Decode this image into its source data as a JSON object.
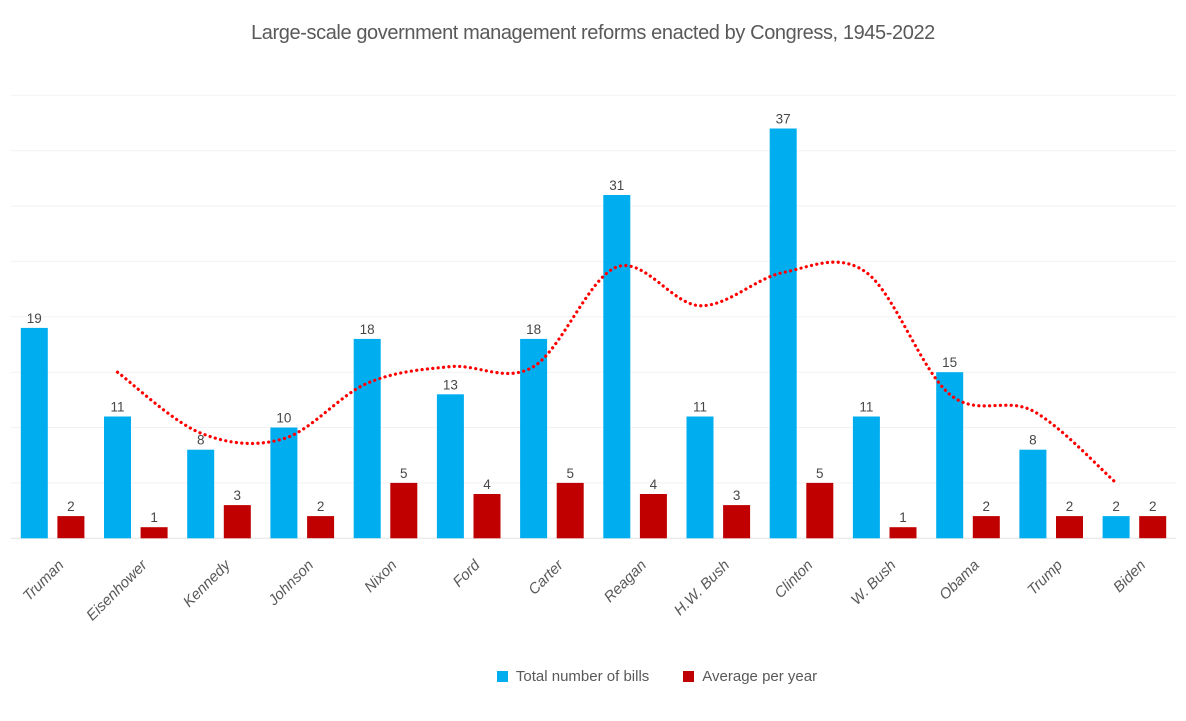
{
  "colors": {
    "bills": "#00AEEF",
    "average": "#C00000",
    "trendline": "#FF0000",
    "text": "#595959",
    "value_label": "#474747",
    "gridline": "#F2F2F2",
    "axis_line": "#E3E3E3"
  },
  "chart_data": {
    "type": "bar",
    "title": "Large-scale government management reforms enacted by Congress, 1945-2022",
    "categories": [
      "Truman",
      "Eisenhower",
      "Kennedy",
      "Johnson",
      "Nixon",
      "Ford",
      "Carter",
      "Reagan",
      "H.W. Bush",
      "Clinton",
      "W. Bush",
      "Obama",
      "Trump",
      "Biden"
    ],
    "series": [
      {
        "name": "Total number of bills",
        "type": "bar",
        "color": "#00AEEF",
        "values": [
          19,
          11,
          8,
          10,
          18,
          13,
          18,
          31,
          11,
          37,
          11,
          15,
          8,
          2
        ]
      },
      {
        "name": "Average per year",
        "type": "bar",
        "color": "#C00000",
        "values": [
          2,
          1,
          3,
          2,
          5,
          4,
          5,
          4,
          3,
          5,
          1,
          2,
          2,
          2
        ]
      },
      {
        "name": "trendline",
        "type": "line",
        "style": "dotted",
        "color": "#FF0000",
        "values": [
          null,
          15,
          9.5,
          9,
          14,
          15.5,
          15.5,
          24.5,
          21,
          24,
          24,
          13,
          11.5,
          5
        ]
      }
    ],
    "ylim": [
      0,
      40
    ],
    "gridline_step": 5,
    "grid": true,
    "y_axis_labels_visible": false,
    "data_labels": true,
    "legend_position": "bottom",
    "legend_entries": [
      "Total number of bills",
      "Average per year"
    ]
  }
}
